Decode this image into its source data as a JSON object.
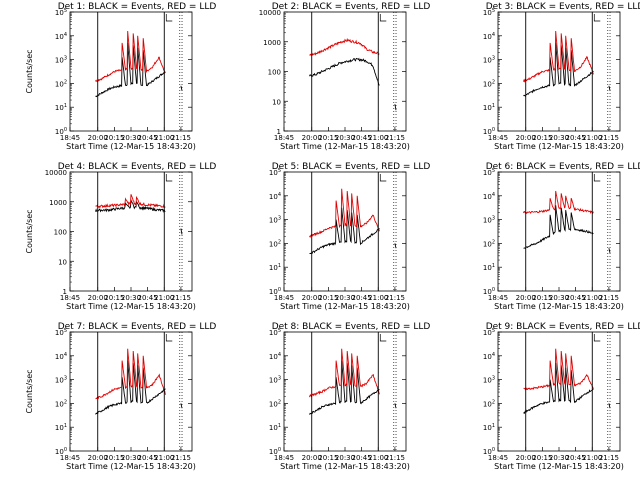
{
  "figure": {
    "xlabel_prefix": "Start Time (12-Mar-15 18:43:20)",
    "ylabel": "Counts/sec",
    "colors": {
      "events": "#000000",
      "lld": "#e00000"
    },
    "x_tick_labels": [
      "18:45",
      "20:00",
      "20:15",
      "20:30",
      "20:45",
      "21:00",
      "21:15"
    ]
  },
  "chart_data": [
    {
      "type": "line",
      "title": "Det 1: BLACK = Events, RED = LLD",
      "ylog": true,
      "ylim": [
        1,
        100000
      ],
      "y_tick_labels": [
        "10^0",
        "10^1",
        "10^2",
        "10^3",
        "10^4",
        "10^5"
      ],
      "xlim": [
        0,
        110
      ],
      "x_ticks": [
        0,
        25,
        40,
        55,
        70,
        85,
        100
      ],
      "solid_vlines": [
        25,
        85
      ],
      "dotted_vlines": [
        99,
        101
      ],
      "series": [
        {
          "name": "Events",
          "values_log": {
            "base": [
              1.45,
              1.6,
              1.75,
              1.85,
              1.9,
              1.95,
              2.0,
              1.95,
              1.9,
              2.1,
              2.3,
              2.5
            ],
            "spikes": [
              [
                47,
                3.1
              ],
              [
                52,
                3.7
              ],
              [
                57,
                3.6
              ],
              [
                61,
                3.5
              ],
              [
                66,
                3.4
              ]
            ]
          }
        },
        {
          "name": "LLD",
          "values_log": {
            "base": [
              2.1,
              2.2,
              2.35,
              2.5,
              2.55,
              2.6,
              2.65,
              2.6,
              2.5,
              2.7,
              3.1,
              2.4
            ],
            "spikes": [
              [
                47,
                3.7
              ],
              [
                52,
                4.2
              ],
              [
                57,
                4.1
              ],
              [
                61,
                4.0
              ],
              [
                66,
                3.9
              ]
            ]
          }
        }
      ]
    },
    {
      "type": "line",
      "title": "Det 2: BLACK = Events, RED = LLD",
      "ylog": true,
      "ylim": [
        1,
        10000
      ],
      "y_tick_labels": [
        "1",
        "10",
        "100",
        "1000",
        "10000"
      ],
      "xlim": [
        0,
        110
      ],
      "x_ticks": [
        0,
        25,
        40,
        55,
        70,
        85,
        100
      ],
      "solid_vlines": [
        25,
        85
      ],
      "dotted_vlines": [
        99,
        101
      ],
      "series": [
        {
          "name": "Events",
          "values_log": {
            "base": [
              1.85,
              1.9,
              2.0,
              2.1,
              2.2,
              2.3,
              2.35,
              2.4,
              2.4,
              2.35,
              2.2,
              1.5
            ],
            "spikes": []
          }
        },
        {
          "name": "LLD",
          "values_log": {
            "base": [
              2.55,
              2.6,
              2.7,
              2.8,
              2.9,
              3.0,
              3.05,
              3.0,
              2.95,
              2.75,
              2.65,
              2.6
            ],
            "spikes": []
          }
        }
      ]
    },
    {
      "type": "line",
      "title": "Det 3: BLACK = Events, RED = LLD",
      "ylog": true,
      "ylim": [
        1,
        100000
      ],
      "y_tick_labels": [
        "10^0",
        "10^1",
        "10^2",
        "10^3",
        "10^4",
        "10^5"
      ],
      "xlim": [
        0,
        110
      ],
      "x_ticks": [
        0,
        25,
        40,
        55,
        70,
        85,
        100
      ],
      "solid_vlines": [
        25,
        85
      ],
      "dotted_vlines": [
        99,
        101
      ],
      "series": [
        {
          "name": "Events",
          "values_log": {
            "base": [
              1.45,
              1.6,
              1.75,
              1.85,
              1.9,
              1.95,
              2.0,
              1.95,
              1.9,
              2.1,
              2.3,
              2.5
            ],
            "spikes": [
              [
                47,
                3.1
              ],
              [
                52,
                3.7
              ],
              [
                57,
                3.6
              ],
              [
                61,
                3.5
              ],
              [
                66,
                3.4
              ]
            ]
          }
        },
        {
          "name": "LLD",
          "values_log": {
            "base": [
              2.1,
              2.2,
              2.35,
              2.5,
              2.55,
              2.6,
              2.65,
              2.6,
              2.5,
              2.7,
              3.1,
              2.4
            ],
            "spikes": [
              [
                47,
                3.7
              ],
              [
                52,
                4.2
              ],
              [
                57,
                4.1
              ],
              [
                61,
                4.0
              ],
              [
                66,
                3.9
              ]
            ]
          }
        }
      ]
    },
    {
      "type": "line",
      "title": "Det 4: BLACK = Events, RED = LLD",
      "ylog": true,
      "ylim": [
        1,
        10000
      ],
      "y_tick_labels": [
        "1",
        "10",
        "100",
        "1000",
        "10000"
      ],
      "xlim": [
        0,
        110
      ],
      "x_ticks": [
        0,
        25,
        40,
        55,
        70,
        85,
        100
      ],
      "solid_vlines": [
        25,
        85
      ],
      "dotted_vlines": [
        99,
        101
      ],
      "series": [
        {
          "name": "Events",
          "values_log": {
            "base": [
              2.7,
              2.72,
              2.72,
              2.75,
              2.78,
              2.8,
              2.82,
              2.8,
              2.78,
              2.75,
              2.72,
              2.7
            ],
            "spikes": [
              [
                50,
                2.95
              ],
              [
                55,
                3.05
              ],
              [
                60,
                3.0
              ]
            ]
          }
        },
        {
          "name": "LLD",
          "values_log": {
            "base": [
              2.85,
              2.85,
              2.87,
              2.88,
              2.9,
              2.92,
              2.95,
              2.93,
              2.9,
              2.88,
              2.86,
              2.85
            ],
            "spikes": [
              [
                50,
                3.1
              ],
              [
                55,
                3.25
              ],
              [
                60,
                3.15
              ]
            ]
          }
        }
      ]
    },
    {
      "type": "line",
      "title": "Det 5: BLACK = Events, RED = LLD",
      "ylog": true,
      "ylim": [
        1,
        100000
      ],
      "y_tick_labels": [
        "10^0",
        "10^1",
        "10^2",
        "10^3",
        "10^4",
        "10^5"
      ],
      "xlim": [
        0,
        110
      ],
      "x_ticks": [
        0,
        25,
        40,
        55,
        70,
        85,
        100
      ],
      "solid_vlines": [
        25,
        85
      ],
      "dotted_vlines": [
        99,
        101
      ],
      "series": [
        {
          "name": "Events",
          "values_log": {
            "base": [
              1.55,
              1.7,
              1.85,
              1.95,
              2.0,
              2.05,
              2.1,
              2.05,
              2.0,
              2.2,
              2.4,
              2.6
            ],
            "spikes": [
              [
                47,
                3.0
              ],
              [
                52,
                3.5
              ],
              [
                57,
                3.4
              ],
              [
                61,
                3.3
              ],
              [
                66,
                3.2
              ]
            ]
          }
        },
        {
          "name": "LLD",
          "values_log": {
            "base": [
              2.3,
              2.4,
              2.5,
              2.65,
              2.7,
              2.75,
              2.8,
              2.75,
              2.7,
              2.85,
              3.2,
              2.5
            ],
            "spikes": [
              [
                47,
                3.8
              ],
              [
                52,
                4.3
              ],
              [
                57,
                4.2
              ],
              [
                61,
                4.1
              ],
              [
                66,
                4.0
              ]
            ]
          }
        }
      ]
    },
    {
      "type": "line",
      "title": "Det 6: BLACK = Events, RED = LLD",
      "ylog": true,
      "ylim": [
        1,
        100000
      ],
      "y_tick_labels": [
        "10^0",
        "10^1",
        "10^2",
        "10^3",
        "10^4",
        "10^5"
      ],
      "xlim": [
        0,
        110
      ],
      "x_ticks": [
        0,
        25,
        40,
        55,
        70,
        85,
        100
      ],
      "solid_vlines": [
        25,
        85
      ],
      "dotted_vlines": [
        99,
        101
      ],
      "series": [
        {
          "name": "Events",
          "values_log": {
            "base": [
              1.8,
              1.9,
              2.0,
              2.15,
              2.3,
              2.45,
              2.55,
              2.6,
              2.6,
              2.55,
              2.5,
              2.4
            ],
            "spikes": [
              [
                47,
                3.2
              ],
              [
                52,
                3.6
              ],
              [
                57,
                3.5
              ],
              [
                61,
                3.4
              ],
              [
                66,
                3.3
              ]
            ]
          }
        },
        {
          "name": "LLD",
          "values_log": {
            "base": [
              3.3,
              3.3,
              3.32,
              3.35,
              3.4,
              3.45,
              3.5,
              3.48,
              3.45,
              3.4,
              3.35,
              3.3
            ],
            "spikes": [
              [
                47,
                3.9
              ],
              [
                52,
                4.2
              ],
              [
                57,
                4.1
              ],
              [
                61,
                4.0
              ],
              [
                66,
                3.9
              ]
            ]
          }
        }
      ]
    },
    {
      "type": "line",
      "title": "Det 7: BLACK = Events, RED = LLD",
      "ylog": true,
      "ylim": [
        1,
        100000
      ],
      "y_tick_labels": [
        "10^0",
        "10^1",
        "10^2",
        "10^3",
        "10^4",
        "10^5"
      ],
      "xlim": [
        0,
        110
      ],
      "x_ticks": [
        0,
        25,
        40,
        55,
        70,
        85,
        100
      ],
      "solid_vlines": [
        25,
        85
      ],
      "dotted_vlines": [
        99,
        101
      ],
      "series": [
        {
          "name": "Events",
          "values_log": {
            "base": [
              1.55,
              1.7,
              1.85,
              1.95,
              2.0,
              2.05,
              2.1,
              2.05,
              2.0,
              2.2,
              2.4,
              2.6
            ],
            "spikes": [
              [
                47,
                3.1
              ],
              [
                52,
                3.8
              ],
              [
                57,
                3.7
              ],
              [
                61,
                3.6
              ],
              [
                66,
                3.5
              ]
            ]
          }
        },
        {
          "name": "LLD",
          "values_log": {
            "base": [
              2.2,
              2.3,
              2.45,
              2.6,
              2.65,
              2.7,
              2.75,
              2.7,
              2.65,
              2.8,
              3.2,
              2.4
            ],
            "spikes": [
              [
                47,
                3.8
              ],
              [
                52,
                4.3
              ],
              [
                57,
                4.2
              ],
              [
                61,
                4.1
              ],
              [
                66,
                4.0
              ]
            ]
          }
        }
      ]
    },
    {
      "type": "line",
      "title": "Det 8: BLACK = Events, RED = LLD",
      "ylog": true,
      "ylim": [
        1,
        100000
      ],
      "y_tick_labels": [
        "10^0",
        "10^1",
        "10^2",
        "10^3",
        "10^4",
        "10^5"
      ],
      "xlim": [
        0,
        110
      ],
      "x_ticks": [
        0,
        25,
        40,
        55,
        70,
        85,
        100
      ],
      "solid_vlines": [
        25,
        85
      ],
      "dotted_vlines": [
        99,
        101
      ],
      "series": [
        {
          "name": "Events",
          "values_log": {
            "base": [
              1.55,
              1.7,
              1.85,
              1.95,
              2.0,
              2.05,
              2.1,
              2.05,
              2.0,
              2.2,
              2.4,
              2.6
            ],
            "spikes": [
              [
                47,
                3.1
              ],
              [
                52,
                3.8
              ],
              [
                57,
                3.7
              ],
              [
                61,
                3.6
              ],
              [
                66,
                3.5
              ]
            ]
          }
        },
        {
          "name": "LLD",
          "values_log": {
            "base": [
              2.3,
              2.4,
              2.5,
              2.65,
              2.7,
              2.75,
              2.8,
              2.75,
              2.7,
              2.85,
              3.2,
              2.4
            ],
            "spikes": [
              [
                47,
                3.8
              ],
              [
                52,
                4.3
              ],
              [
                57,
                4.2
              ],
              [
                61,
                4.1
              ],
              [
                66,
                4.0
              ]
            ]
          }
        }
      ]
    },
    {
      "type": "line",
      "title": "Det 9: BLACK = Events, RED = LLD",
      "ylog": true,
      "ylim": [
        1,
        100000
      ],
      "y_tick_labels": [
        "10^0",
        "10^1",
        "10^2",
        "10^3",
        "10^4",
        "10^5"
      ],
      "xlim": [
        0,
        110
      ],
      "x_ticks": [
        0,
        25,
        40,
        55,
        70,
        85,
        100
      ],
      "solid_vlines": [
        25,
        85
      ],
      "dotted_vlines": [
        99,
        101
      ],
      "series": [
        {
          "name": "Events",
          "values_log": {
            "base": [
              1.6,
              1.75,
              1.9,
              2.0,
              2.05,
              2.1,
              2.15,
              2.1,
              2.05,
              2.25,
              2.45,
              2.6
            ],
            "spikes": [
              [
                47,
                3.0
              ],
              [
                52,
                3.7
              ],
              [
                57,
                3.6
              ],
              [
                61,
                3.5
              ],
              [
                66,
                3.4
              ]
            ]
          }
        },
        {
          "name": "LLD",
          "values_log": {
            "base": [
              2.6,
              2.62,
              2.65,
              2.7,
              2.75,
              2.8,
              2.85,
              2.8,
              2.75,
              2.85,
              3.2,
              2.6
            ],
            "spikes": [
              [
                47,
                3.8
              ],
              [
                52,
                4.3
              ],
              [
                57,
                4.2
              ],
              [
                61,
                4.1
              ],
              [
                66,
                4.0
              ]
            ]
          }
        }
      ]
    }
  ]
}
